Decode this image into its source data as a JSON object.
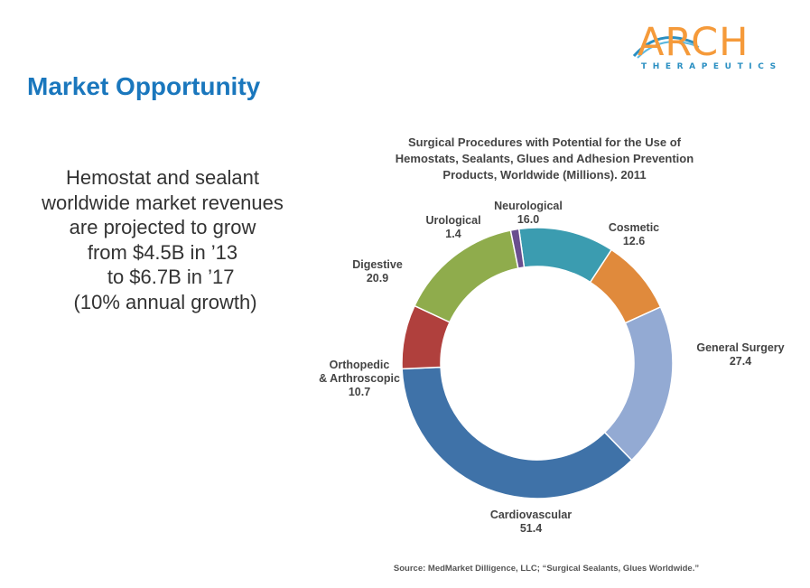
{
  "logo": {
    "word": "ARCH",
    "tagline": "THERAPEUTICS"
  },
  "page": {
    "title": "Market Opportunity"
  },
  "body_lines": [
    "Hemostat and sealant",
    "worldwide market revenues",
    "are projected to grow",
    "from $4.5B in ’13",
    "   to $6.7B in ’17",
    " (10% annual growth)"
  ],
  "chart_data": {
    "type": "pie",
    "title_lines": [
      "Surgical Procedures with Potential for the Use of",
      "Hemostats, Sealants, Glues and Adhesion Prevention",
      "Products, Worldwide (Millions).  2011"
    ],
    "categories": [
      "Neurological",
      "Cosmetic",
      "General Surgery",
      "Cardiovascular",
      "Orthopedic & Arthroscopic",
      "Digestive",
      "Urological"
    ],
    "values": [
      16.0,
      12.6,
      27.4,
      51.4,
      10.7,
      20.9,
      1.4
    ],
    "value_labels": [
      "16.0",
      "12.6",
      "27.4",
      "51.4",
      "10.7",
      "20.9",
      "1.4"
    ],
    "label_lines": [
      [
        "Neurological"
      ],
      [
        "Cosmetic"
      ],
      [
        "General Surgery"
      ],
      [
        "Cardiovascular"
      ],
      [
        "Orthopedic",
        "& Arthroscopic"
      ],
      [
        "Digestive"
      ],
      [
        "Urological"
      ]
    ],
    "colors": [
      "#3b9cb0",
      "#e08a3c",
      "#93aad3",
      "#3f72a8",
      "#b0403d",
      "#8fac4c",
      "#6a4e8f"
    ],
    "donut": true,
    "source": "Source: MedMarket Dilligence, LLC; “Surgical Sealants, Glues Worldwide.”"
  }
}
